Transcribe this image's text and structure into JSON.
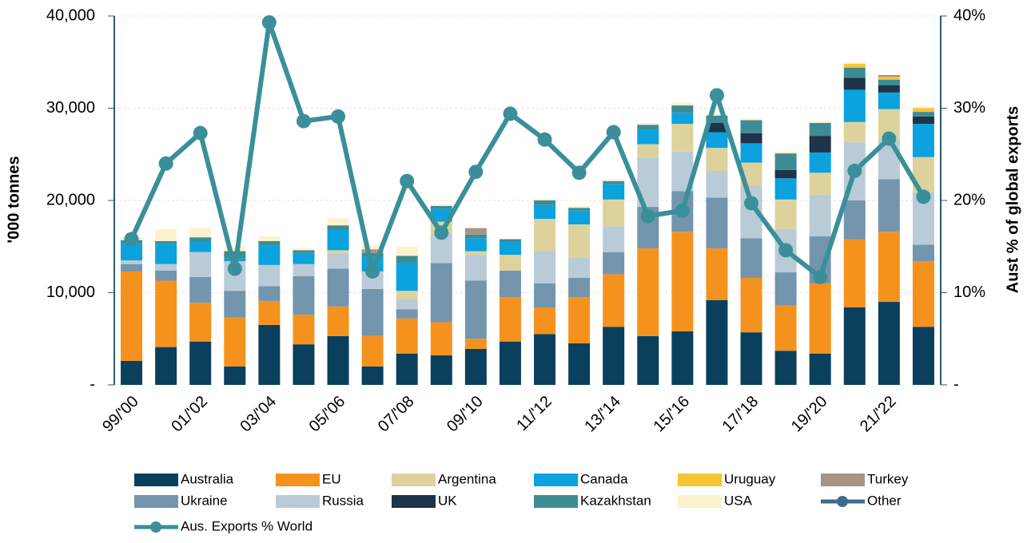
{
  "chart_data": {
    "type": "bar",
    "stacked": true,
    "y_label": "'000 tonnes",
    "y2_label": "Aust % of global exports",
    "categories": [
      "99/'00",
      null,
      "01/'02",
      null,
      "03/'04",
      null,
      "05/'06",
      null,
      "07/'08",
      null,
      "09/'10",
      null,
      "11/'12",
      null,
      "13/'14",
      null,
      "15/'16",
      null,
      "17/'18",
      null,
      "19/'20",
      null,
      "21/'22",
      null
    ],
    "ylim": [
      0,
      40000
    ],
    "yticks": [
      {
        "value": 0,
        "label": "-"
      },
      {
        "value": 10000,
        "label": "10,000"
      },
      {
        "value": 20000,
        "label": "20,000"
      },
      {
        "value": 30000,
        "label": "30,000"
      },
      {
        "value": 40000,
        "label": "40,000"
      }
    ],
    "y2lim": [
      0,
      40
    ],
    "y2ticks": [
      {
        "value": 0,
        "label": "-"
      },
      {
        "value": 10,
        "label": "10%"
      },
      {
        "value": 20,
        "label": "20%"
      },
      {
        "value": 30,
        "label": "30%"
      },
      {
        "value": 40,
        "label": "40%"
      }
    ],
    "grid": true,
    "series": [
      {
        "name": "Australia",
        "color": "#0b3f5e",
        "values": [
          2600,
          4100,
          4700,
          2000,
          6500,
          4400,
          5300,
          2000,
          3400,
          3200,
          3900,
          4700,
          5500,
          4500,
          6300,
          5300,
          5800,
          9200,
          5700,
          3700,
          3400,
          8400,
          9000,
          6300
        ]
      },
      {
        "name": "EU",
        "color": "#f5921e",
        "values": [
          9700,
          7200,
          4200,
          5300,
          2600,
          3200,
          3200,
          3300,
          3800,
          3600,
          1100,
          4800,
          2900,
          5000,
          5700,
          9500,
          10800,
          5600,
          5900,
          4900,
          7600,
          7400,
          7600,
          7100
        ]
      },
      {
        "name": "Argentina",
        "color": "#ddd29c",
        "values": [
          0,
          0,
          0,
          0,
          0,
          0,
          400,
          0,
          900,
          1300,
          400,
          1700,
          3500,
          3600,
          2900,
          1500,
          3000,
          2500,
          2500,
          3200,
          2400,
          2200,
          3300,
          3800
        ]
      },
      {
        "name": "Canada",
        "color": "#0ba2de",
        "values": [
          1800,
          2200,
          1100,
          300,
          2100,
          1200,
          2200,
          1600,
          3000,
          1400,
          1400,
          1400,
          1500,
          1500,
          1700,
          1600,
          1200,
          1700,
          2100,
          2300,
          2200,
          3500,
          1800,
          3600
        ]
      },
      {
        "name": "Uruguay",
        "color": "#f7c533",
        "values": [
          0,
          0,
          0,
          0,
          0,
          0,
          0,
          0,
          0,
          0,
          0,
          0,
          0,
          0,
          0,
          0,
          0,
          0,
          0,
          0,
          0,
          400,
          300,
          400
        ]
      },
      {
        "name": "Turkey",
        "color": "#a89484",
        "values": [
          0,
          0,
          0,
          0,
          0,
          0,
          0,
          400,
          0,
          0,
          700,
          0,
          0,
          0,
          0,
          0,
          0,
          0,
          0,
          0,
          0,
          0,
          200,
          0
        ]
      },
      {
        "name": "Ukraine",
        "color": "#7395ae",
        "values": [
          800,
          1100,
          2800,
          2900,
          1600,
          4200,
          4100,
          5100,
          1000,
          6400,
          6300,
          2900,
          2600,
          2100,
          2400,
          4500,
          4400,
          5500,
          4300,
          3600,
          5100,
          4200,
          5700,
          1800
        ]
      },
      {
        "name": "Russia",
        "color": "#b9cbd6",
        "values": [
          400,
          700,
          2700,
          3200,
          2300,
          1300,
          1600,
          1900,
          1100,
          3200,
          2800,
          0,
          3500,
          2200,
          2800,
          5300,
          4300,
          2900,
          5700,
          4700,
          4500,
          6300,
          4300,
          5700
        ]
      },
      {
        "name": "UK",
        "color": "#1f3349",
        "values": [
          0,
          0,
          0,
          0,
          0,
          0,
          0,
          0,
          0,
          0,
          0,
          0,
          0,
          0,
          0,
          0,
          0,
          1000,
          1100,
          900,
          1800,
          1300,
          800,
          800
        ]
      },
      {
        "name": "Kazakhstan",
        "color": "#3e8c93",
        "values": [
          400,
          300,
          500,
          800,
          500,
          300,
          500,
          400,
          800,
          300,
          400,
          300,
          500,
          300,
          300,
          500,
          800,
          800,
          1400,
          1800,
          1400,
          1100,
          600,
          500
        ]
      },
      {
        "name": "USA",
        "color": "#fdf2cf",
        "values": [
          300,
          1300,
          1000,
          600,
          500,
          200,
          800,
          500,
          1000,
          200,
          0,
          0,
          200,
          200,
          200,
          200,
          300,
          200,
          200,
          200,
          200,
          200,
          0,
          200
        ]
      },
      {
        "name": "Other",
        "color": "#3d6c8a",
        "type": "line",
        "values": [
          null,
          null,
          null,
          null,
          null,
          null,
          null,
          null,
          null,
          null,
          null,
          null,
          null,
          null,
          null,
          null,
          null,
          null,
          null,
          null,
          null,
          null,
          null,
          null
        ]
      },
      {
        "name": "Aus. Exports % World",
        "color": "#3a8f9a",
        "type": "line",
        "axis": "y2",
        "values": [
          15.8,
          24.0,
          27.3,
          12.6,
          39.3,
          28.6,
          29.1,
          12.3,
          22.1,
          16.5,
          23.1,
          29.4,
          26.6,
          23.0,
          27.4,
          18.3,
          18.9,
          31.4,
          19.7,
          14.6,
          11.7,
          23.2,
          26.7,
          20.4
        ]
      }
    ]
  }
}
